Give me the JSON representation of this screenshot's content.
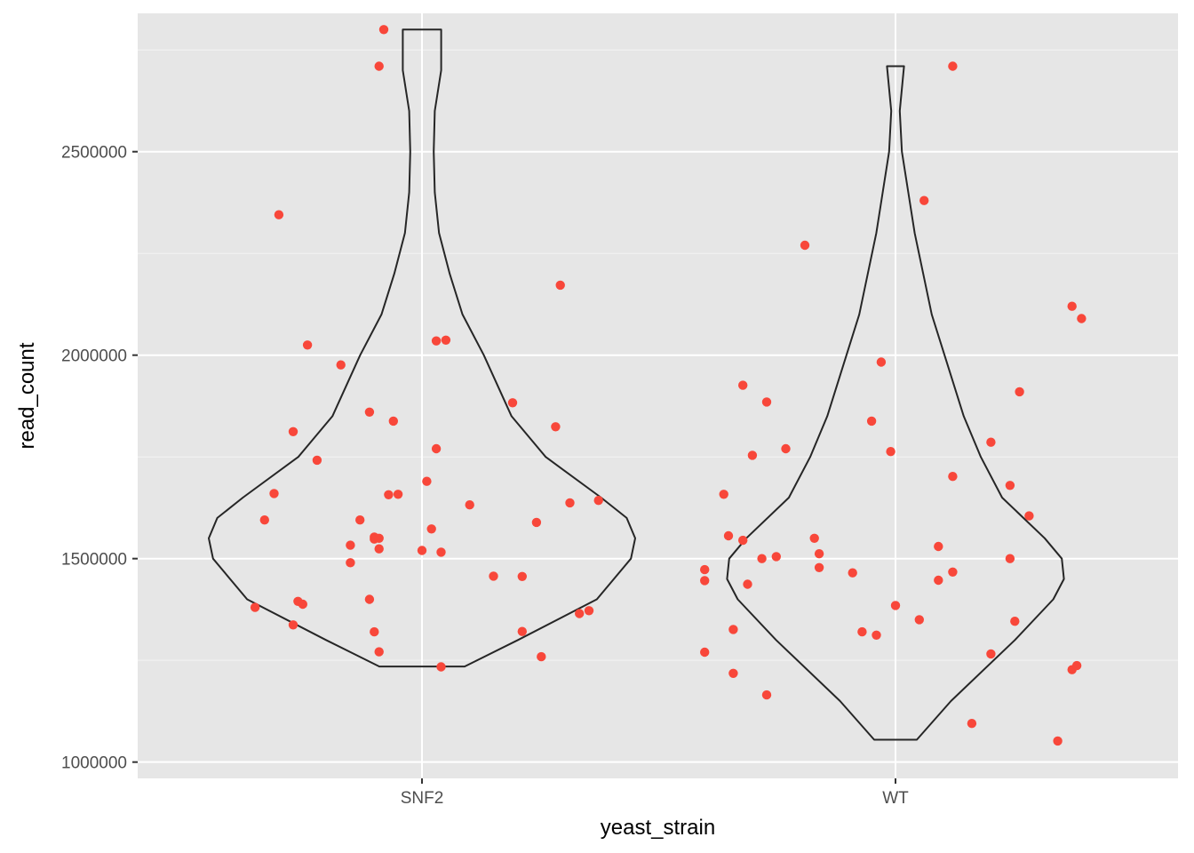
{
  "chart_data": {
    "type": "violin",
    "xlabel": "yeast_strain",
    "ylabel": "read_count",
    "categories": [
      "SNF2",
      "WT"
    ],
    "ylim": [
      960000,
      2840000
    ],
    "y_ticks": [
      1000000,
      1500000,
      2000000,
      2500000
    ],
    "y_tick_labels": [
      "1000000",
      "1500000",
      "2000000",
      "2500000"
    ],
    "grid": true,
    "legend": "none",
    "colors": {
      "panel": "#e6e6e6",
      "grid": "#ffffff",
      "points": "#f8473a",
      "violin_outline": "#262626"
    },
    "violins": [
      {
        "category": "SNF2",
        "profile": [
          [
            1235000,
            0.2
          ],
          [
            1300000,
            0.45
          ],
          [
            1400000,
            0.82
          ],
          [
            1500000,
            0.98
          ],
          [
            1550000,
            1.0
          ],
          [
            1600000,
            0.96
          ],
          [
            1650000,
            0.84
          ],
          [
            1750000,
            0.58
          ],
          [
            1850000,
            0.42
          ],
          [
            2000000,
            0.29
          ],
          [
            2100000,
            0.19
          ],
          [
            2200000,
            0.13
          ],
          [
            2300000,
            0.08
          ],
          [
            2400000,
            0.06
          ],
          [
            2500000,
            0.055
          ],
          [
            2600000,
            0.06
          ],
          [
            2700000,
            0.09
          ],
          [
            2800000,
            0.09
          ]
        ]
      },
      {
        "category": "WT",
        "profile": [
          [
            1055000,
            0.1
          ],
          [
            1150000,
            0.26
          ],
          [
            1300000,
            0.56
          ],
          [
            1400000,
            0.74
          ],
          [
            1450000,
            0.79
          ],
          [
            1500000,
            0.78
          ],
          [
            1550000,
            0.7
          ],
          [
            1650000,
            0.5
          ],
          [
            1750000,
            0.4
          ],
          [
            1850000,
            0.32
          ],
          [
            2000000,
            0.23
          ],
          [
            2100000,
            0.17
          ],
          [
            2200000,
            0.13
          ],
          [
            2300000,
            0.09
          ],
          [
            2400000,
            0.06
          ],
          [
            2500000,
            0.03
          ],
          [
            2600000,
            0.02
          ],
          [
            2710000,
            0.04
          ]
        ]
      }
    ],
    "series": [
      {
        "category": "SNF2",
        "points": [
          [
            -0.35,
            1380000
          ],
          [
            -0.33,
            1595000
          ],
          [
            -0.3,
            2345000
          ],
          [
            -0.31,
            1660000
          ],
          [
            -0.26,
            1395000
          ],
          [
            -0.27,
            1337000
          ],
          [
            -0.25,
            1388000
          ],
          [
            -0.24,
            2025000
          ],
          [
            -0.27,
            1812000
          ],
          [
            -0.22,
            1742000
          ],
          [
            -0.17,
            1976000
          ],
          [
            -0.15,
            1533000
          ],
          [
            -0.15,
            1490000
          ],
          [
            -0.13,
            1595000
          ],
          [
            -0.11,
            1400000
          ],
          [
            -0.1,
            1553000
          ],
          [
            -0.1,
            1320000
          ],
          [
            -0.09,
            1524000
          ],
          [
            -0.11,
            1860000
          ],
          [
            -0.07,
            1657000
          ],
          [
            -0.1,
            1548000
          ],
          [
            -0.09,
            1550000
          ],
          [
            -0.09,
            1271000
          ],
          [
            -0.09,
            2710000
          ],
          [
            -0.08,
            2800000
          ],
          [
            -0.06,
            1838000
          ],
          [
            -0.05,
            1658000
          ],
          [
            0.0,
            1520000
          ],
          [
            0.01,
            1690000
          ],
          [
            0.02,
            1573000
          ],
          [
            0.03,
            1770000
          ],
          [
            0.04,
            1516000
          ],
          [
            0.03,
            2035000
          ],
          [
            0.05,
            2037000
          ],
          [
            0.04,
            1234000
          ],
          [
            0.1,
            1632000
          ],
          [
            0.15,
            1457000
          ],
          [
            0.19,
            1883000
          ],
          [
            0.21,
            1456000
          ],
          [
            0.21,
            1321000
          ],
          [
            0.24,
            1589000
          ],
          [
            0.25,
            1259000
          ],
          [
            0.28,
            1824000
          ],
          [
            0.29,
            2172000
          ],
          [
            0.31,
            1637000
          ],
          [
            0.33,
            1365000
          ],
          [
            0.35,
            1372000
          ],
          [
            0.37,
            1643000
          ]
        ]
      },
      {
        "category": "WT",
        "points": [
          [
            -0.4,
            1473000
          ],
          [
            -0.4,
            1446000
          ],
          [
            -0.4,
            1270000
          ],
          [
            -0.36,
            1658000
          ],
          [
            -0.35,
            1556000
          ],
          [
            -0.34,
            1218000
          ],
          [
            -0.34,
            1326000
          ],
          [
            -0.32,
            1545000
          ],
          [
            -0.32,
            1926000
          ],
          [
            -0.31,
            1437000
          ],
          [
            -0.3,
            1754000
          ],
          [
            -0.28,
            1500000
          ],
          [
            -0.27,
            1885000
          ],
          [
            -0.27,
            1165000
          ],
          [
            -0.25,
            1505000
          ],
          [
            -0.23,
            1770000
          ],
          [
            -0.19,
            2270000
          ],
          [
            -0.17,
            1550000
          ],
          [
            -0.16,
            1478000
          ],
          [
            -0.16,
            1512000
          ],
          [
            -0.09,
            1465000
          ],
          [
            -0.07,
            1320000
          ],
          [
            -0.05,
            1838000
          ],
          [
            -0.04,
            1312000
          ],
          [
            -0.03,
            1983000
          ],
          [
            -0.01,
            1763000
          ],
          [
            0.0,
            1385000
          ],
          [
            0.05,
            1350000
          ],
          [
            0.06,
            2380000
          ],
          [
            0.09,
            1447000
          ],
          [
            0.09,
            1530000
          ],
          [
            0.12,
            1467000
          ],
          [
            0.12,
            1702000
          ],
          [
            0.12,
            2710000
          ],
          [
            0.16,
            1095000
          ],
          [
            0.2,
            1786000
          ],
          [
            0.2,
            1266000
          ],
          [
            0.24,
            1680000
          ],
          [
            0.24,
            1500000
          ],
          [
            0.25,
            1346000
          ],
          [
            0.26,
            1910000
          ],
          [
            0.28,
            1605000
          ],
          [
            0.34,
            1052000
          ],
          [
            0.37,
            1227000
          ],
          [
            0.37,
            2120000
          ],
          [
            0.38,
            1237000
          ],
          [
            0.39,
            2090000
          ]
        ]
      }
    ]
  }
}
